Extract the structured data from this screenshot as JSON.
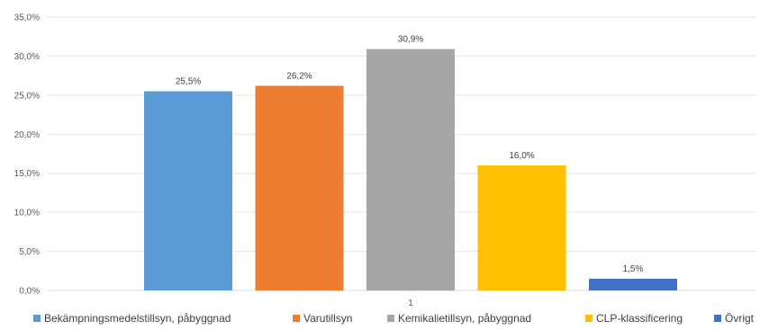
{
  "chart_data": {
    "type": "bar",
    "categories": [
      "1"
    ],
    "series": [
      {
        "name": "Bekämpningsmedelstillsyn, påbyggnad",
        "values": [
          25.5
        ],
        "label": "25,5%",
        "color": "#5B9BD5"
      },
      {
        "name": "Varutillsyn",
        "values": [
          26.2
        ],
        "label": "26,2%",
        "color": "#ED7D31"
      },
      {
        "name": "Kemikalietillsyn, påbyggnad",
        "values": [
          30.9
        ],
        "label": "30,9%",
        "color": "#A5A5A5"
      },
      {
        "name": "CLP-klassificering",
        "values": [
          16.0
        ],
        "label": "16,0%",
        "color": "#FFC000"
      },
      {
        "name": "Övrigt",
        "values": [
          1.5
        ],
        "label": "1,5%",
        "color": "#4472C4"
      }
    ],
    "ylim": [
      0,
      35
    ],
    "yticks": [
      "0,0%",
      "5,0%",
      "10,0%",
      "15,0%",
      "20,0%",
      "25,0%",
      "30,0%",
      "35,0%"
    ],
    "ytick_values": [
      0,
      5,
      10,
      15,
      20,
      25,
      30,
      35
    ],
    "grid": true,
    "legend_position": "bottom",
    "xlabel": "",
    "ylabel": "",
    "title": ""
  }
}
